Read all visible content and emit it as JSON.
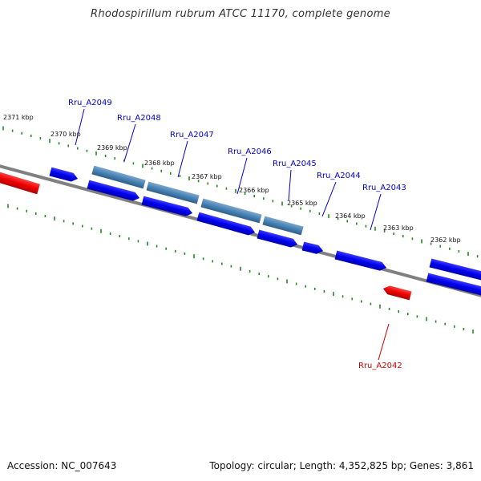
{
  "title": "Rhodospirillum rubrum ATCC 11170, complete genome",
  "footer": {
    "accession": "Accession: NC_007643",
    "topology": "Topology: circular; Length: 4,352,825 bp; Genes: 3,861"
  },
  "ruler": {
    "labels": [
      "2371 kbp",
      "2370 kbp",
      "2369 kbp",
      "2368 kbp",
      "2367 kbp",
      "2366 kbp",
      "2365 kbp",
      "2364 kbp",
      "2363 kbp",
      "2362 kbp"
    ]
  },
  "genes": [
    {
      "id": "Ru_A2049",
      "label": "Rru_A2049",
      "color": "#0000cc"
    },
    {
      "id": "Ru_A2048",
      "label": "Rru_A2048",
      "color": "#0000cc"
    },
    {
      "id": "Ru_A2047",
      "label": "Rru_A2047",
      "color": "#0000cc"
    },
    {
      "id": "Ru_A2046",
      "label": "Rru_A2046",
      "color": "#0000cc"
    },
    {
      "id": "Ru_A2045",
      "label": "Rru_A2045",
      "color": "#0000cc"
    },
    {
      "id": "Ru_A2044",
      "label": "Rru_A2044",
      "color": "#0000cc"
    },
    {
      "id": "Ru_A2043",
      "label": "Rru_A2043",
      "color": "#0000cc"
    },
    {
      "id": "Ru_A2042",
      "label": "Rru_A2042",
      "color": "#cc0000"
    }
  ],
  "colors": {
    "cds_forward": "#0000ee",
    "cds_reverse": "#ee0000",
    "gene_feature": "#4682b4",
    "backbone": "#808080",
    "ticks": "#228b22"
  }
}
